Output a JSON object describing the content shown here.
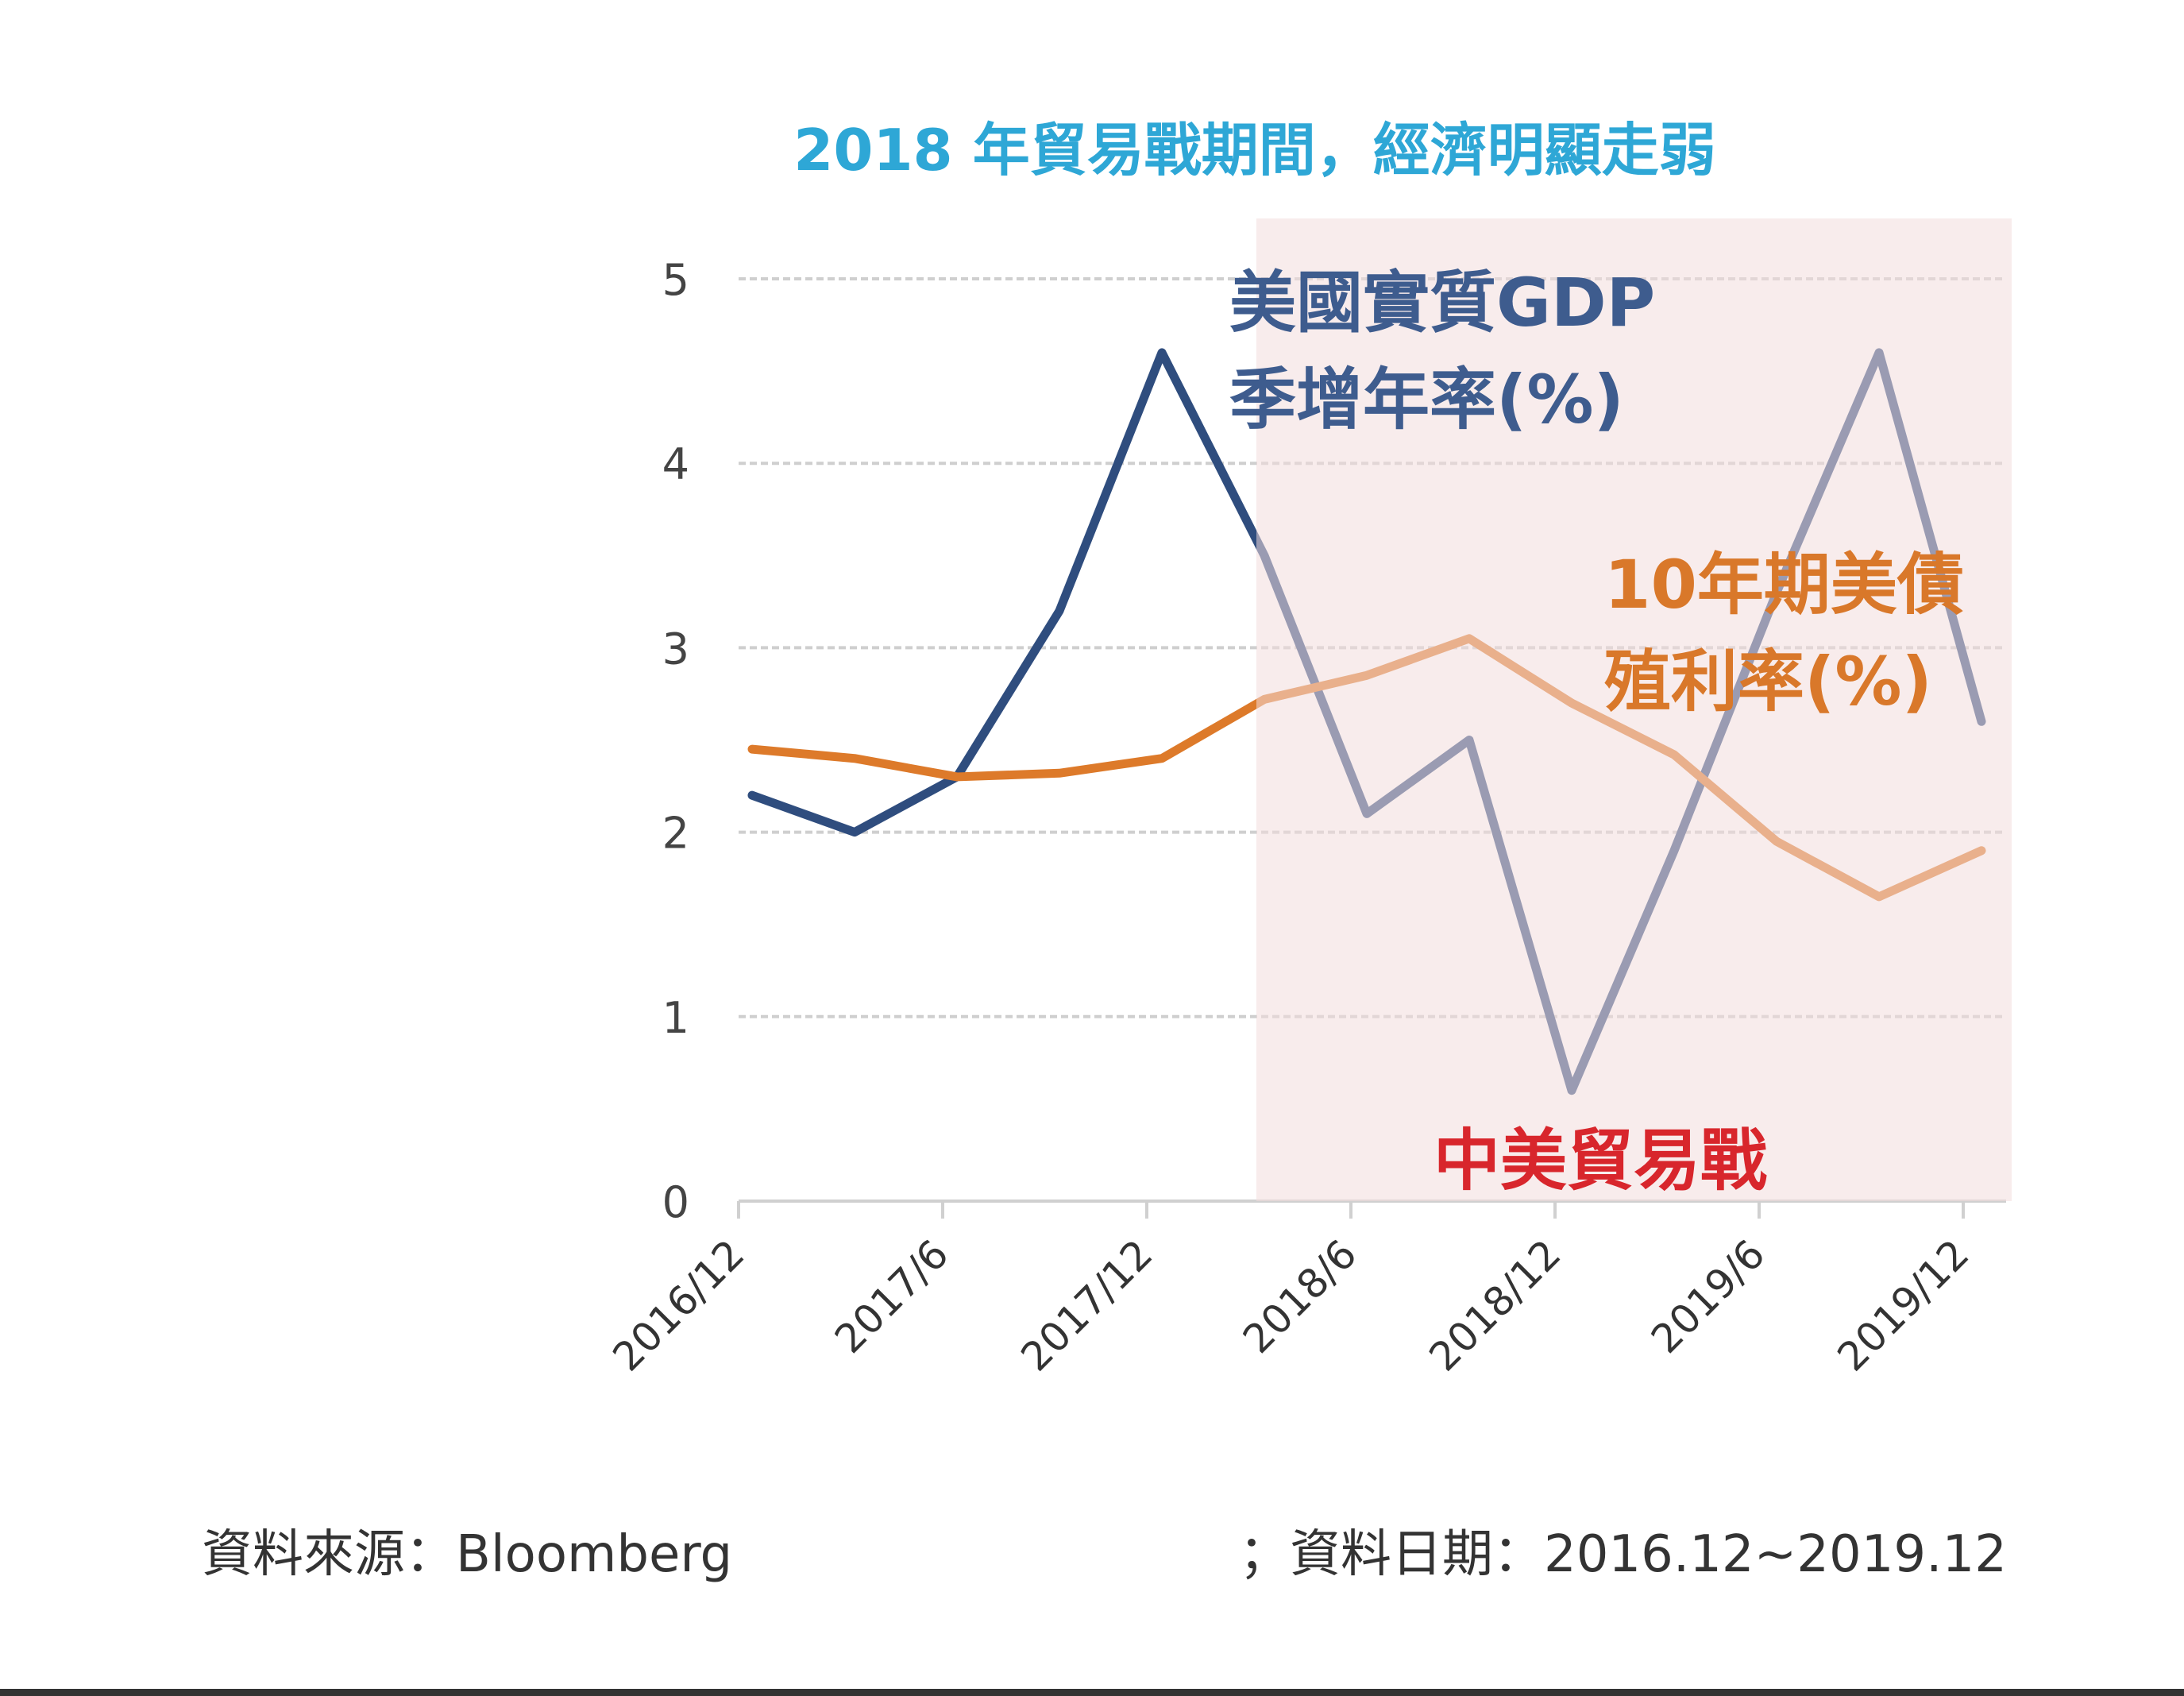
{
  "chart_data": {
    "type": "line",
    "title": "2018 年貿易戰期間，經濟明顯走弱",
    "x": [
      "2016/12",
      "2017/3",
      "2017/6",
      "2017/9",
      "2017/12",
      "2018/3",
      "2018/6",
      "2018/9",
      "2018/12",
      "2019/3",
      "2019/6",
      "2019/9",
      "2019/12"
    ],
    "x_tick_labels": [
      "2016/12",
      "2017/6",
      "2017/12",
      "2018/6",
      "2018/12",
      "2019/6",
      "2019/12"
    ],
    "y_ticks": [
      0,
      1,
      2,
      3,
      4,
      5
    ],
    "ylim": [
      0,
      5
    ],
    "grid": true,
    "series": [
      {
        "name": "美國實質GDP季增年率(%)",
        "label_lines": [
          "美國實質GDP",
          "季增年率(%)"
        ],
        "color": "#2f4d7e",
        "values": [
          2.2,
          2.0,
          2.3,
          3.2,
          4.6,
          3.5,
          2.1,
          2.5,
          0.6,
          1.9,
          3.3,
          4.6,
          2.6
        ]
      },
      {
        "name": "10年期美債殖利率(%)",
        "label_lines": [
          "10年期美債",
          "殖利率(%)"
        ],
        "color": "#dd7a2a",
        "values": [
          2.45,
          2.4,
          2.3,
          2.32,
          2.4,
          2.72,
          2.85,
          3.05,
          2.7,
          2.42,
          1.95,
          1.65,
          1.9
        ]
      }
    ],
    "annotations": [
      {
        "text": "中美貿易戰",
        "color": "#d8262c",
        "shaded_from": "2018/3",
        "shaded_to": "2019/12",
        "shade_color": "#f3dcdc"
      }
    ]
  },
  "footer": {
    "source": "資料來源：Bloomberg",
    "date": "；資料日期：2016.12~2019.12"
  }
}
